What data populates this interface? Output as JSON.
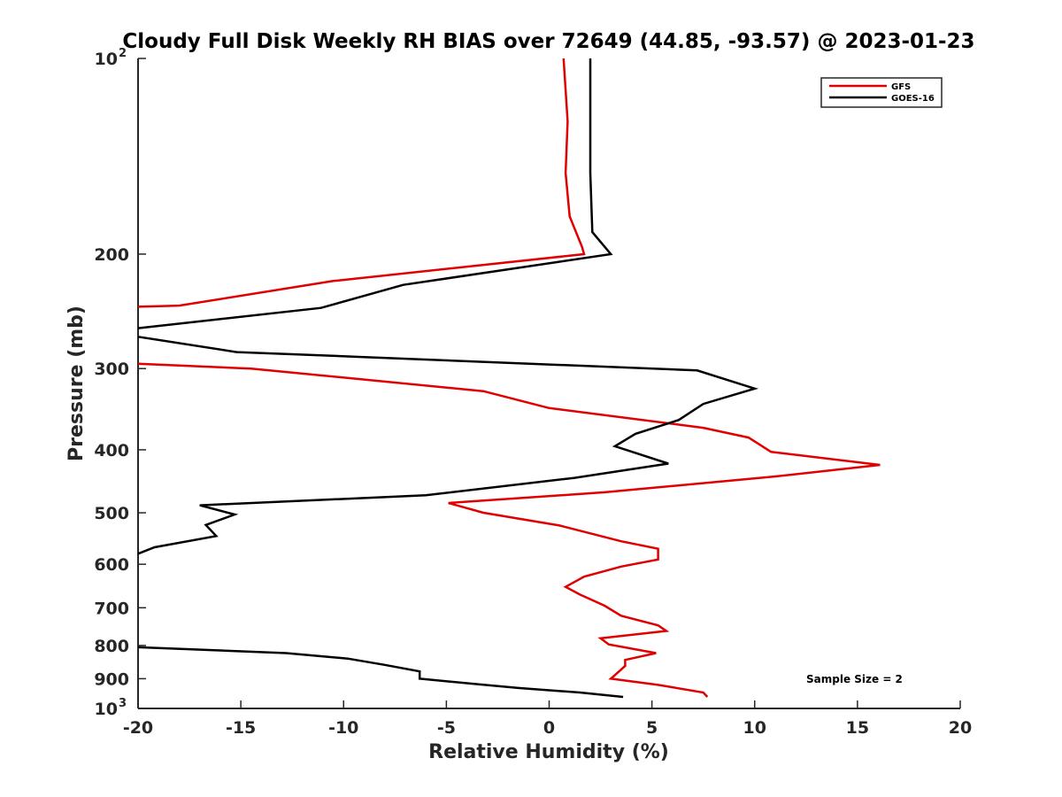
{
  "chart_data": {
    "type": "line",
    "title": "Cloudy Full Disk Weekly RH BIAS over 72649 (44.85, -93.57) @ 2023-01-23",
    "xlabel": "Relative Humidity (%)",
    "ylabel": "Pressure (mb)",
    "xlim": [
      -20,
      20
    ],
    "ylim": [
      100,
      1000
    ],
    "yscale": "log",
    "y_reversed": true,
    "x_ticks": [
      "-20",
      "-15",
      "-10",
      "-5",
      "0",
      "5",
      "10",
      "15",
      "20"
    ],
    "y_ticks": [
      {
        "value": 100,
        "base": "10",
        "exp": "2"
      },
      {
        "value": 200,
        "label": "200"
      },
      {
        "value": 300,
        "label": "300"
      },
      {
        "value": 400,
        "label": "400"
      },
      {
        "value": 500,
        "label": "500"
      },
      {
        "value": 600,
        "label": "600"
      },
      {
        "value": 700,
        "label": "700"
      },
      {
        "value": 800,
        "label": "800"
      },
      {
        "value": 900,
        "label": "900"
      },
      {
        "value": 1000,
        "base": "10",
        "exp": "3"
      }
    ],
    "grid": false,
    "legend_position": "top-right",
    "annotation": "Sample Size = 2",
    "series": [
      {
        "name": "GFS",
        "color": "#e00000",
        "points": [
          [
            0.7,
            100
          ],
          [
            0.9,
            125
          ],
          [
            0.8,
            150
          ],
          [
            1.0,
            175
          ],
          [
            1.6,
            195
          ],
          [
            1.7,
            200
          ],
          [
            -10.5,
            220
          ],
          [
            -18.0,
            240
          ],
          [
            -20.0,
            241
          ],
          [
            null,
            null
          ],
          [
            -20.0,
            295
          ],
          [
            -14.5,
            300
          ],
          [
            -3.2,
            325
          ],
          [
            0.0,
            345
          ],
          [
            7.5,
            370
          ],
          [
            9.7,
            383
          ],
          [
            10.8,
            403
          ],
          [
            16.1,
            422
          ],
          [
            10.9,
            440
          ],
          [
            2.7,
            465
          ],
          [
            -4.9,
            483
          ],
          [
            -3.2,
            500
          ],
          [
            0.5,
            523
          ],
          [
            3.5,
            553
          ],
          [
            5.3,
            568
          ],
          [
            5.3,
            590
          ],
          [
            3.5,
            605
          ],
          [
            1.7,
            627
          ],
          [
            0.8,
            650
          ],
          [
            1.5,
            668
          ],
          [
            2.7,
            695
          ],
          [
            3.5,
            720
          ],
          [
            5.3,
            745
          ],
          [
            5.7,
            760
          ],
          [
            2.5,
            780
          ],
          [
            2.9,
            797
          ],
          [
            5.2,
            822
          ],
          [
            3.7,
            842
          ],
          [
            3.7,
            860
          ],
          [
            3.4,
            877
          ],
          [
            3.0,
            900
          ],
          [
            5.3,
            920
          ],
          [
            7.5,
            945
          ],
          [
            7.7,
            960
          ]
        ]
      },
      {
        "name": "GOES-16",
        "color": "#000000",
        "points": [
          [
            2.0,
            100
          ],
          [
            2.0,
            125
          ],
          [
            2.0,
            150
          ],
          [
            2.1,
            185
          ],
          [
            3.0,
            200
          ],
          [
            -7.1,
            223
          ],
          [
            -11.1,
            242
          ],
          [
            -20.0,
            260
          ],
          [
            null,
            null
          ],
          [
            -20.0,
            268
          ],
          [
            -15.2,
            283
          ],
          [
            -9.0,
            288
          ],
          [
            7.2,
            302
          ],
          [
            10.0,
            322
          ],
          [
            7.5,
            340
          ],
          [
            6.3,
            360
          ],
          [
            4.2,
            378
          ],
          [
            3.2,
            395
          ],
          [
            5.8,
            420
          ],
          [
            1.2,
            442
          ],
          [
            -6.0,
            470
          ],
          [
            -17.0,
            487
          ],
          [
            -15.3,
            503
          ],
          [
            -16.7,
            522
          ],
          [
            -16.2,
            543
          ],
          [
            -19.2,
            565
          ],
          [
            -20.0,
            578
          ],
          [
            null,
            null
          ],
          [
            -20.0,
            805
          ],
          [
            -12.8,
            822
          ],
          [
            -9.8,
            838
          ],
          [
            -8.0,
            857
          ],
          [
            -6.3,
            877
          ],
          [
            -6.3,
            900
          ],
          [
            -3.6,
            917
          ],
          [
            -1.5,
            930
          ],
          [
            1.5,
            945
          ],
          [
            3.6,
            960
          ]
        ]
      }
    ]
  }
}
